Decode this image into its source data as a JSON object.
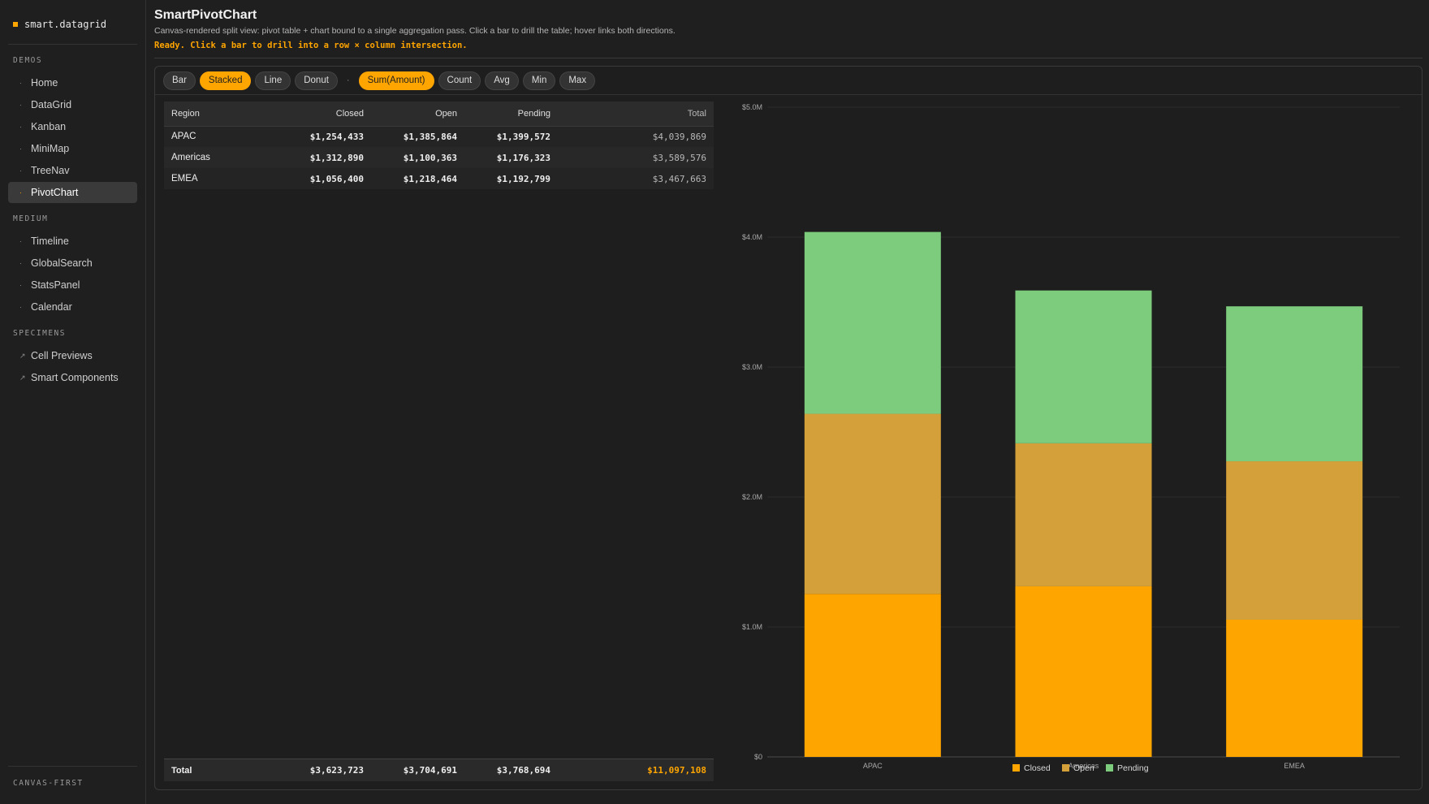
{
  "brand": {
    "name": "smart.datagrid"
  },
  "sidebar": {
    "sections": [
      {
        "title": "DEMOS",
        "items": [
          {
            "label": "Home",
            "bullet": "·",
            "active": false
          },
          {
            "label": "DataGrid",
            "bullet": "·",
            "active": false
          },
          {
            "label": "Kanban",
            "bullet": "·",
            "active": false
          },
          {
            "label": "MiniMap",
            "bullet": "·",
            "active": false
          },
          {
            "label": "TreeNav",
            "bullet": "·",
            "active": false
          },
          {
            "label": "PivotChart",
            "bullet": "·",
            "active": true
          }
        ]
      },
      {
        "title": "MEDIUM",
        "items": [
          {
            "label": "Timeline",
            "bullet": "·",
            "active": false
          },
          {
            "label": "GlobalSearch",
            "bullet": "·",
            "active": false
          },
          {
            "label": "StatsPanel",
            "bullet": "·",
            "active": false
          },
          {
            "label": "Calendar",
            "bullet": "·",
            "active": false
          }
        ]
      },
      {
        "title": "SPECIMENS",
        "items": [
          {
            "label": "Cell Previews",
            "bullet": "↗",
            "active": false
          },
          {
            "label": "Smart Components",
            "bullet": "↗",
            "active": false
          }
        ]
      }
    ],
    "footer": "CANVAS-FIRST"
  },
  "header": {
    "title": "SmartPivotChart",
    "description": "Canvas-rendered split view: pivot table + chart bound to a single aggregation pass. Click a bar to drill the table; hover links both directions.",
    "status": "Ready. Click a bar to drill into a row × column intersection."
  },
  "toolbar": {
    "chart_types": [
      {
        "label": "Bar",
        "selected": false
      },
      {
        "label": "Stacked",
        "selected": true
      },
      {
        "label": "Line",
        "selected": false
      },
      {
        "label": "Donut",
        "selected": false
      }
    ],
    "separator": "·",
    "aggregations": [
      {
        "label": "Sum(Amount)",
        "selected": true
      },
      {
        "label": "Count",
        "selected": false
      },
      {
        "label": "Avg",
        "selected": false
      },
      {
        "label": "Min",
        "selected": false
      },
      {
        "label": "Max",
        "selected": false
      }
    ]
  },
  "table": {
    "headers": [
      "Region",
      "Closed",
      "Open",
      "Pending",
      "Total"
    ],
    "rows": [
      {
        "region": "APAC",
        "closed": "$1,254,433",
        "open": "$1,385,864",
        "pending": "$1,399,572",
        "total": "$4,039,869"
      },
      {
        "region": "Americas",
        "closed": "$1,312,890",
        "open": "$1,100,363",
        "pending": "$1,176,323",
        "total": "$3,589,576"
      },
      {
        "region": "EMEA",
        "closed": "$1,056,400",
        "open": "$1,218,464",
        "pending": "$1,192,799",
        "total": "$3,467,663"
      }
    ],
    "footer": {
      "label": "Total",
      "closed": "$3,623,723",
      "open": "$3,704,691",
      "pending": "$3,768,694",
      "grand": "$11,097,108"
    }
  },
  "chart_data": {
    "type": "bar",
    "stacked": true,
    "categories": [
      "APAC",
      "Americas",
      "EMEA"
    ],
    "series": [
      {
        "name": "Closed",
        "color": "#ffa500",
        "values": [
          1254433,
          1312890,
          1056400
        ]
      },
      {
        "name": "Open",
        "color": "#d4a03a",
        "values": [
          1385864,
          1100363,
          1218464
        ]
      },
      {
        "name": "Pending",
        "color": "#7dcb7d",
        "values": [
          1399572,
          1176323,
          1192799
        ]
      }
    ],
    "ylim": [
      0,
      5000000
    ],
    "yticks": [
      {
        "value": 0,
        "label": "$0"
      },
      {
        "value": 1000000,
        "label": "$1.0M"
      },
      {
        "value": 2000000,
        "label": "$2.0M"
      },
      {
        "value": 3000000,
        "label": "$3.0M"
      },
      {
        "value": 4000000,
        "label": "$4.0M"
      },
      {
        "value": 5000000,
        "label": "$5.0M"
      }
    ],
    "grid": true,
    "legend": "bottom-center"
  }
}
